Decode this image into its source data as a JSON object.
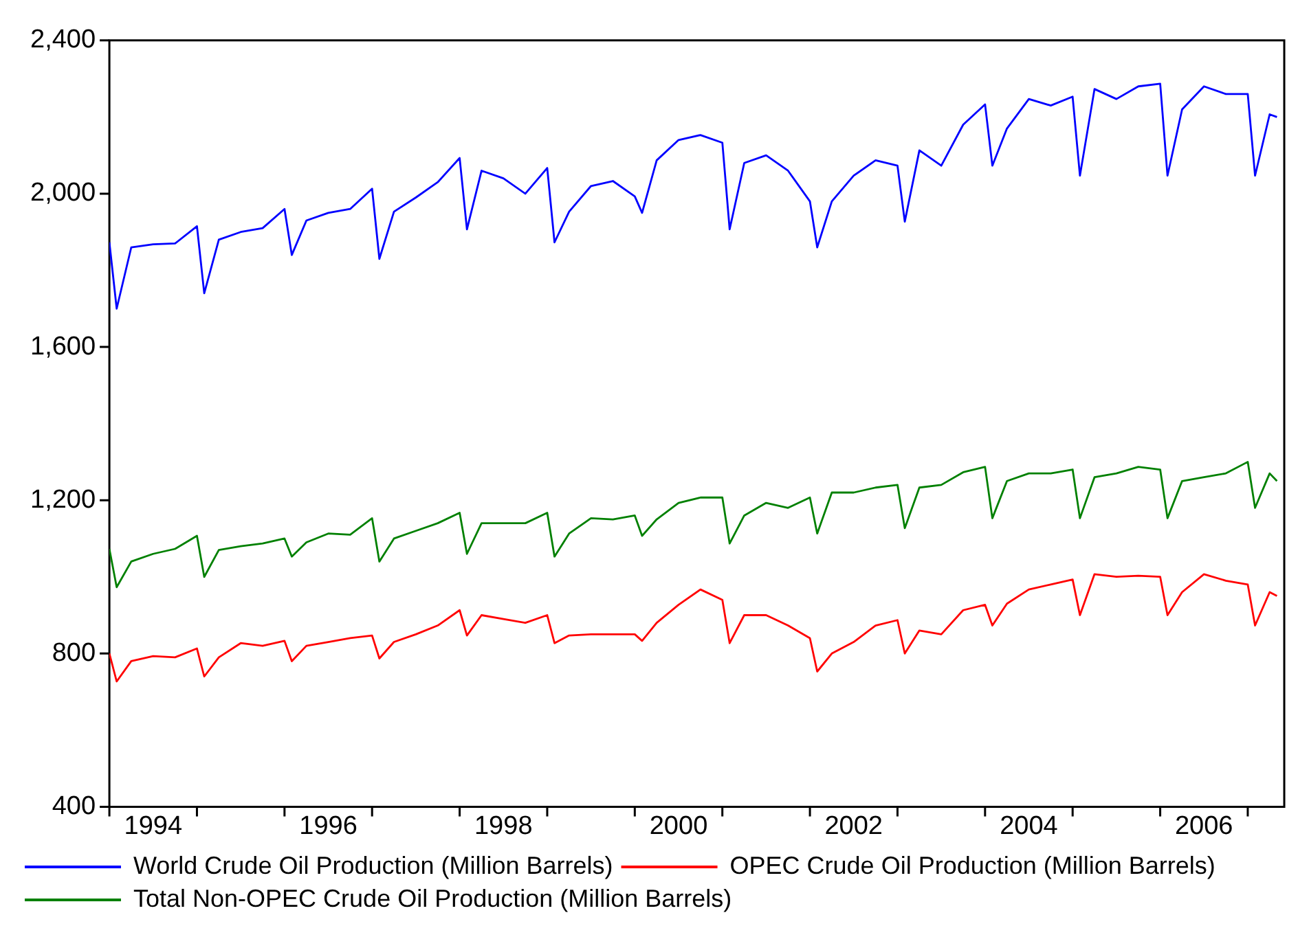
{
  "chart_data": {
    "type": "line",
    "x": [
      "1994-01",
      "1994-02",
      "1994-04",
      "1994-07",
      "1994-10",
      "1995-01",
      "1995-02",
      "1995-04",
      "1995-07",
      "1995-10",
      "1996-01",
      "1996-02",
      "1996-04",
      "1996-07",
      "1996-10",
      "1997-01",
      "1997-02",
      "1997-04",
      "1997-07",
      "1997-10",
      "1998-01",
      "1998-02",
      "1998-04",
      "1998-07",
      "1998-10",
      "1999-01",
      "1999-02",
      "1999-04",
      "1999-07",
      "1999-10",
      "2000-01",
      "2000-02",
      "2000-04",
      "2000-07",
      "2000-10",
      "2001-01",
      "2001-02",
      "2001-04",
      "2001-07",
      "2001-10",
      "2002-01",
      "2002-02",
      "2002-04",
      "2002-07",
      "2002-10",
      "2003-01",
      "2003-02",
      "2003-04",
      "2003-07",
      "2003-10",
      "2004-01",
      "2004-02",
      "2004-04",
      "2004-07",
      "2004-10",
      "2005-01",
      "2005-02",
      "2005-04",
      "2005-07",
      "2005-10",
      "2006-01",
      "2006-02",
      "2006-04",
      "2006-07",
      "2006-10",
      "2007-01",
      "2007-02",
      "2007-04",
      "2007-05"
    ],
    "series": [
      {
        "name": "World Crude Oil Production (Million Barrels)",
        "color": "#0000ff",
        "values": [
          1873,
          1700,
          1860,
          1868,
          1870,
          1915,
          1740,
          1880,
          1900,
          1910,
          1960,
          1840,
          1930,
          1950,
          1960,
          2013,
          1830,
          1953,
          1990,
          2030,
          2093,
          1907,
          2060,
          2040,
          2000,
          2067,
          1873,
          1953,
          2020,
          2033,
          1993,
          1950,
          2087,
          2140,
          2153,
          2133,
          1907,
          2080,
          2100,
          2060,
          1980,
          1860,
          1980,
          2047,
          2087,
          2073,
          1927,
          2113,
          2073,
          2180,
          2233,
          2073,
          2170,
          2247,
          2230,
          2253,
          2047,
          2273,
          2247,
          2280,
          2287,
          2047,
          2220,
          2280,
          2260,
          2260,
          2047,
          2207,
          2200
        ]
      },
      {
        "name": "OPEC Crude Oil Production (Million Barrels)",
        "color": "#ff0000",
        "values": [
          800,
          727,
          780,
          793,
          790,
          813,
          740,
          790,
          827,
          820,
          833,
          780,
          820,
          830,
          840,
          847,
          787,
          830,
          850,
          873,
          913,
          847,
          900,
          890,
          880,
          900,
          827,
          847,
          850,
          850,
          850,
          833,
          880,
          927,
          967,
          940,
          827,
          900,
          900,
          873,
          840,
          753,
          800,
          830,
          873,
          887,
          800,
          860,
          850,
          913,
          927,
          873,
          930,
          967,
          980,
          993,
          900,
          1007,
          1000,
          1003,
          1000,
          900,
          960,
          1007,
          990,
          980,
          873,
          960,
          950
        ]
      },
      {
        "name": "Total Non-OPEC Crude Oil Production (Million Barrels)",
        "color": "#008000",
        "values": [
          1073,
          973,
          1040,
          1060,
          1073,
          1107,
          1000,
          1070,
          1080,
          1087,
          1100,
          1053,
          1090,
          1113,
          1110,
          1153,
          1040,
          1100,
          1120,
          1140,
          1167,
          1060,
          1140,
          1140,
          1140,
          1167,
          1053,
          1113,
          1153,
          1150,
          1160,
          1107,
          1150,
          1193,
          1207,
          1207,
          1087,
          1160,
          1193,
          1180,
          1207,
          1113,
          1220,
          1220,
          1233,
          1240,
          1127,
          1233,
          1240,
          1273,
          1287,
          1153,
          1250,
          1270,
          1270,
          1280,
          1153,
          1260,
          1270,
          1287,
          1280,
          1153,
          1250,
          1260,
          1270,
          1300,
          1180,
          1270,
          1250
        ]
      }
    ],
    "xlim": [
      "1994-01",
      "2007-06"
    ],
    "xticks": [
      {
        "value": "1994-01",
        "label": null
      },
      {
        "value": "1994-07",
        "label": "1994"
      },
      {
        "value": "1995-01",
        "label": null
      },
      {
        "value": "1996-01",
        "label": null
      },
      {
        "value": "1996-07",
        "label": "1996"
      },
      {
        "value": "1997-01",
        "label": null
      },
      {
        "value": "1998-01",
        "label": null
      },
      {
        "value": "1998-07",
        "label": "1998"
      },
      {
        "value": "1999-01",
        "label": null
      },
      {
        "value": "2000-01",
        "label": null
      },
      {
        "value": "2000-07",
        "label": "2000"
      },
      {
        "value": "2001-01",
        "label": null
      },
      {
        "value": "2002-01",
        "label": null
      },
      {
        "value": "2002-07",
        "label": "2002"
      },
      {
        "value": "2003-01",
        "label": null
      },
      {
        "value": "2004-01",
        "label": null
      },
      {
        "value": "2004-07",
        "label": "2004"
      },
      {
        "value": "2005-01",
        "label": null
      },
      {
        "value": "2006-01",
        "label": null
      },
      {
        "value": "2006-07",
        "label": "2006"
      },
      {
        "value": "2007-01",
        "label": null
      }
    ],
    "ylim": [
      400,
      2400
    ],
    "yticks": [
      {
        "value": 400,
        "label": "400"
      },
      {
        "value": 800,
        "label": "800"
      },
      {
        "value": 1200,
        "label": "1,200"
      },
      {
        "value": 1600,
        "label": "1,600"
      },
      {
        "value": 2000,
        "label": "2,000"
      },
      {
        "value": 2400,
        "label": "2,400"
      }
    ],
    "grid": false,
    "legend": "bottom",
    "marker": "none",
    "line_style": "solid"
  }
}
